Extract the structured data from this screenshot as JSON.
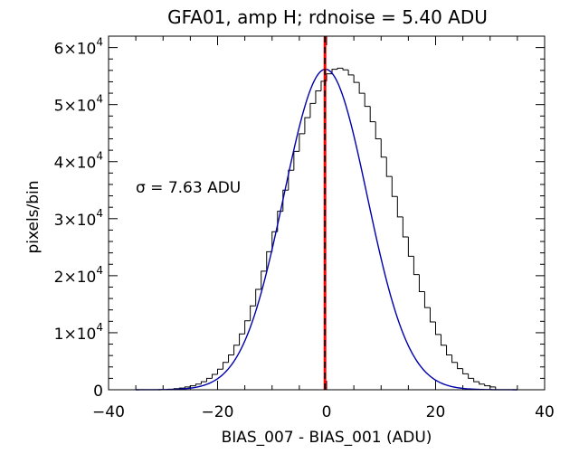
{
  "chart_data": {
    "type": "histogram",
    "title": "GFA01, amp H; rdnoise = 5.40 ADU",
    "xlabel": "BIAS_007 - BIAS_001 (ADU)",
    "ylabel": "pixels/bin",
    "xlim": [
      -40,
      40
    ],
    "ylim": [
      0,
      62000
    ],
    "x_ticks": [
      -40,
      -20,
      0,
      20,
      40
    ],
    "x_tick_labels": [
      "−40",
      "−20",
      "0",
      "20",
      "40"
    ],
    "y_ticks": [
      0,
      10000,
      20000,
      30000,
      40000,
      50000,
      60000
    ],
    "y_tick_labels": [
      {
        "text": "0",
        "mantissa": "0",
        "exp": ""
      },
      {
        "text": "1×10^4",
        "mantissa": "1×10",
        "exp": "4"
      },
      {
        "text": "2×10^4",
        "mantissa": "2×10",
        "exp": "4"
      },
      {
        "text": "3×10^4",
        "mantissa": "3×10",
        "exp": "4"
      },
      {
        "text": "4×10^4",
        "mantissa": "4×10",
        "exp": "4"
      },
      {
        "text": "5×10^4",
        "mantissa": "5×10",
        "exp": "4"
      },
      {
        "text": "6×10^4",
        "mantissa": "6×10",
        "exp": "4"
      }
    ],
    "annotation": "σ = 7.63 ADU",
    "fit": {
      "type": "gaussian",
      "amplitude": 56200,
      "mean": -0.2,
      "sigma": 7.63
    },
    "bin_width": 1,
    "histogram": {
      "bin_start": -29,
      "counts": [
        100,
        200,
        300,
        500,
        700,
        1000,
        1400,
        2000,
        2700,
        3600,
        4800,
        6100,
        7800,
        9800,
        12100,
        14700,
        17600,
        20800,
        24200,
        27700,
        31300,
        35000,
        38500,
        41800,
        44900,
        47700,
        50200,
        52400,
        54100,
        55400,
        56200,
        56400,
        56100,
        55200,
        53900,
        52000,
        49700,
        47000,
        44000,
        40800,
        37400,
        33900,
        30300,
        26800,
        23400,
        20200,
        17200,
        14400,
        11900,
        9700,
        7800,
        6100,
        4800,
        3700,
        2800,
        2000,
        1400,
        1000,
        700,
        500
      ]
    },
    "vertical_lines": [
      {
        "x": -0.3,
        "style": "solid",
        "color": "#ff0000"
      },
      {
        "x": -0.3,
        "style": "dashed",
        "color": "#000000"
      }
    ],
    "colors": {
      "fit": "#0000aa",
      "histogram": "#000000",
      "mean_line": "#ff0000"
    }
  }
}
